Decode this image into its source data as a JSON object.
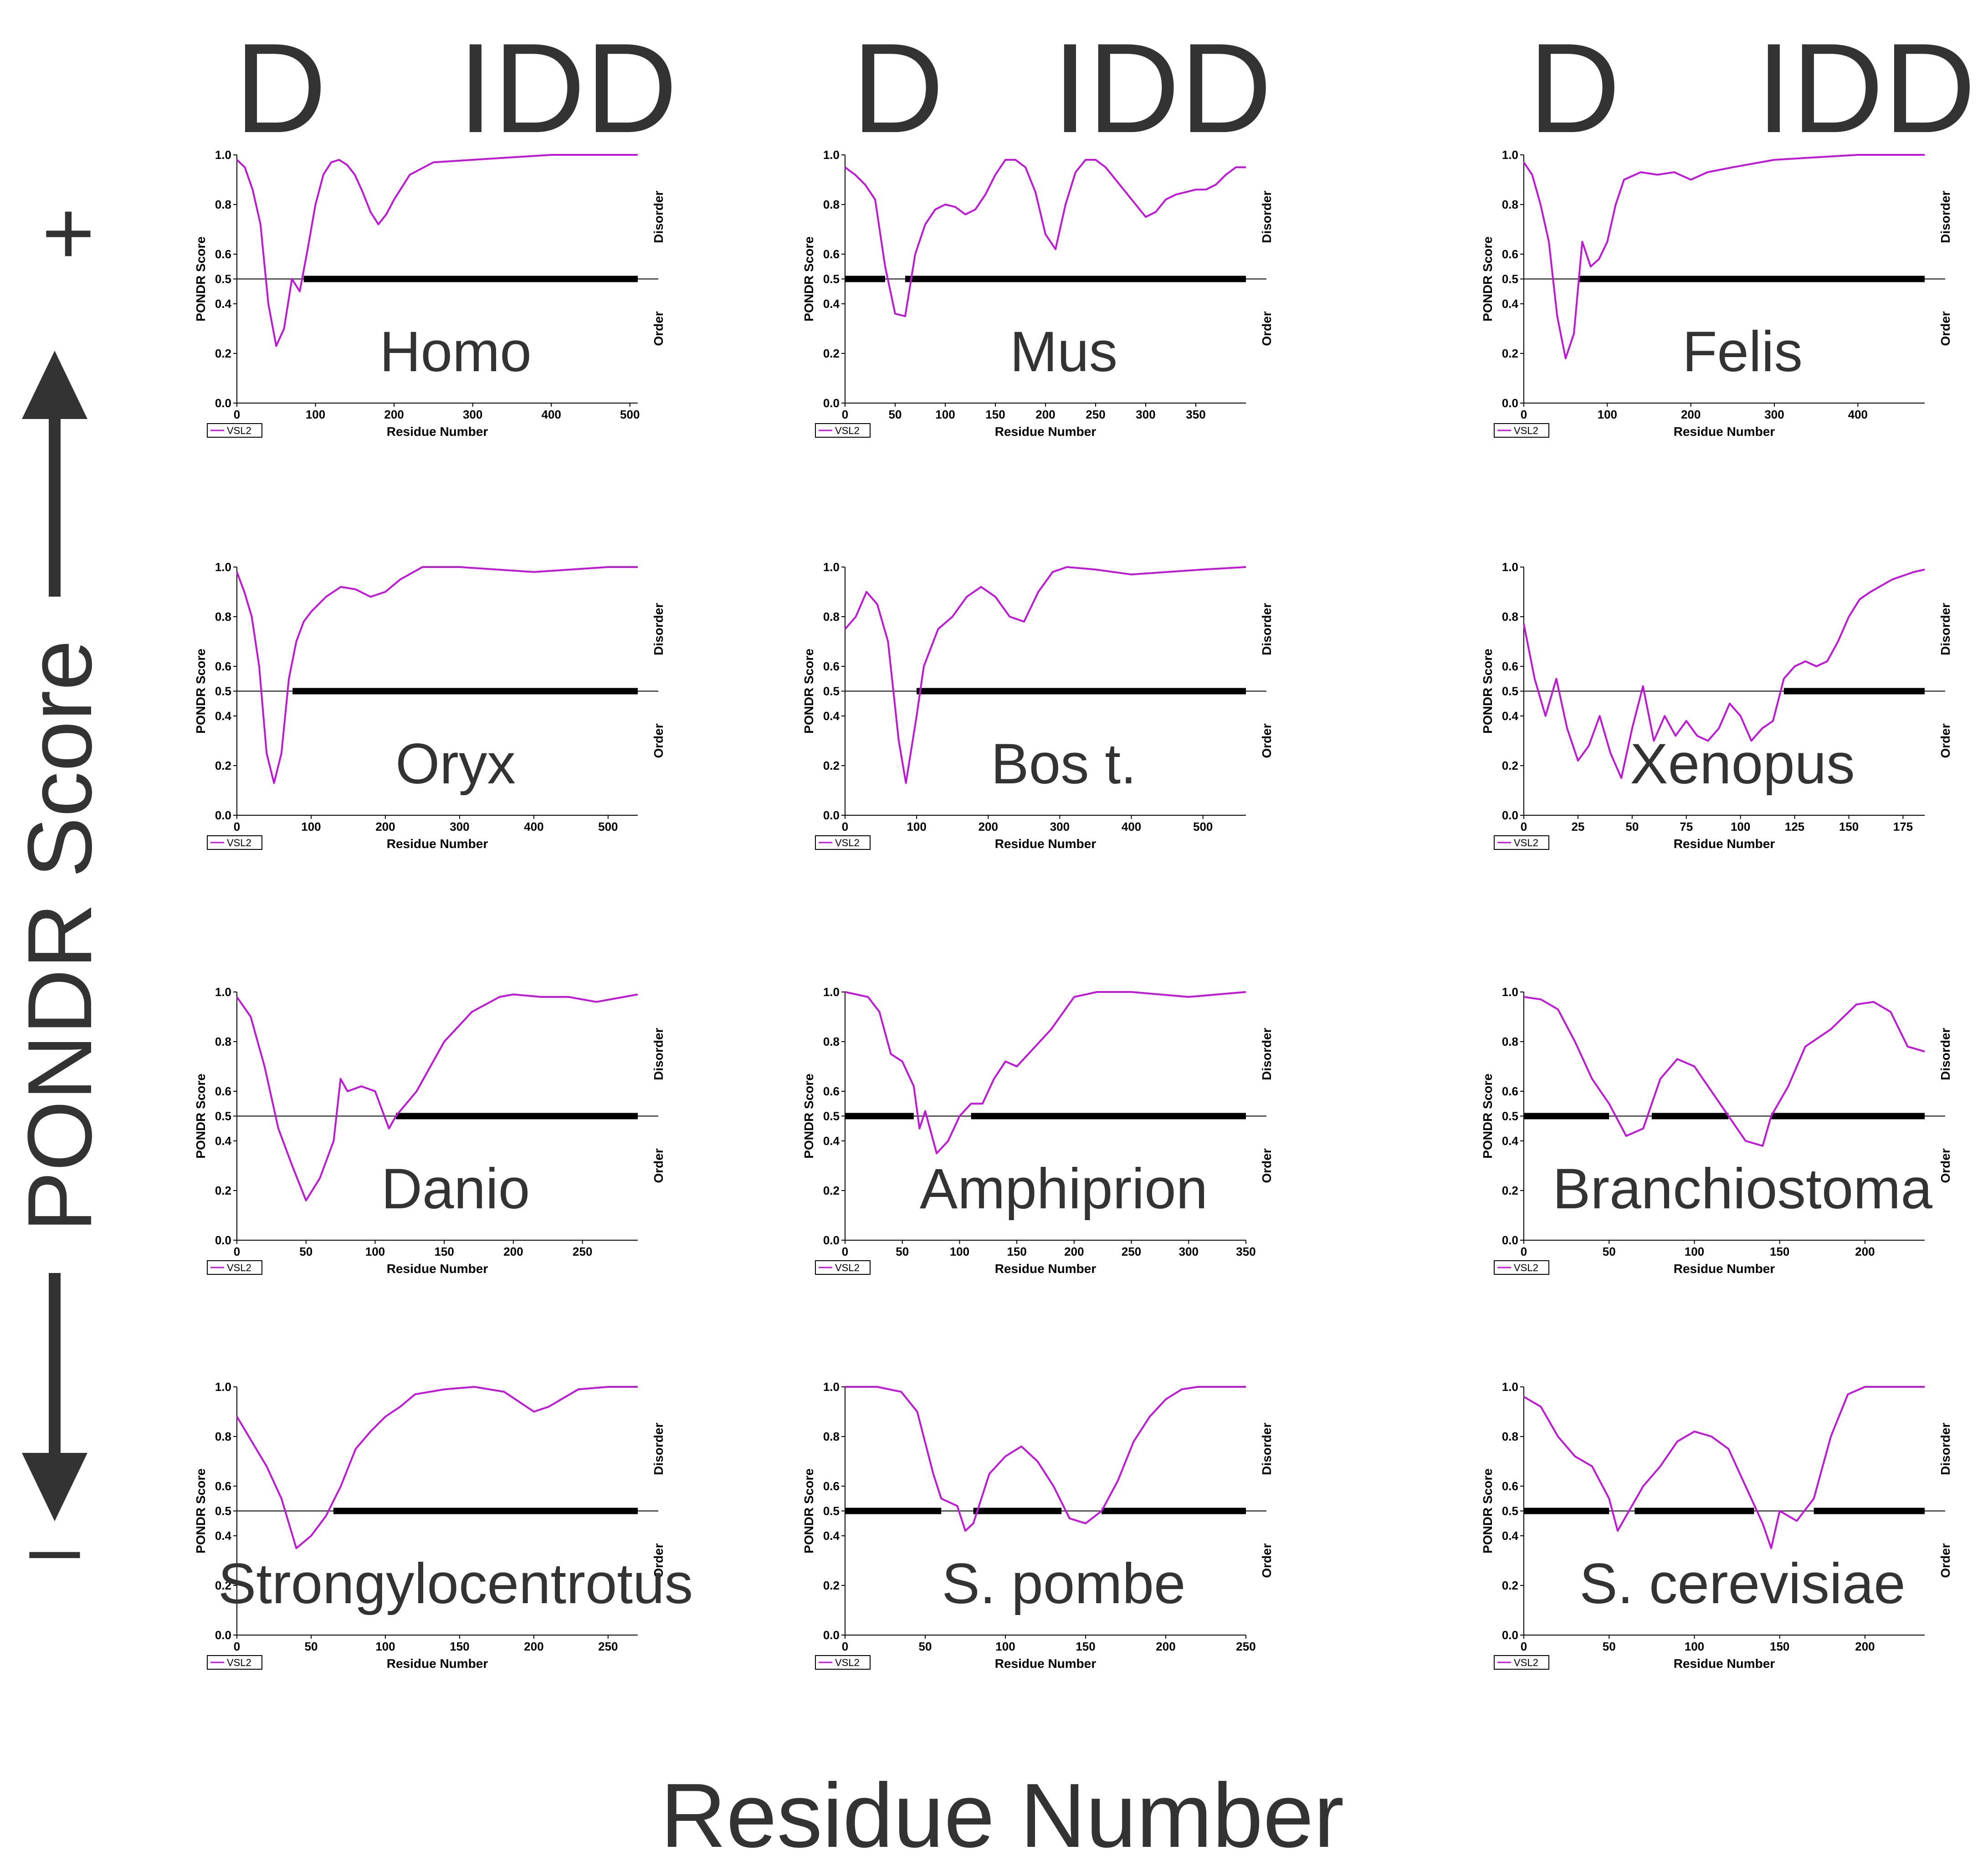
{
  "figure": {
    "column_headers": [
      {
        "d": "D",
        "idd": "IDD"
      },
      {
        "d": "D",
        "idd": "IDD"
      },
      {
        "d": "D",
        "idd": "IDD"
      }
    ],
    "y_axis_title": "PONDR Score",
    "y_axis_plus": "+",
    "y_axis_minus": "–",
    "x_axis_title": "Residue Number"
  },
  "colors": {
    "series": "#c016d8",
    "threshold_bar": "#000000",
    "text": "#333333"
  },
  "chart_data": [
    {
      "type": "line",
      "organism": "Homo",
      "xlabel": "Residue Number",
      "ylabel": "PONDR Score",
      "legend": "VSL2",
      "right_top": "Disorder",
      "right_bottom": "Order",
      "threshold": 0.5,
      "ylim": [
        0,
        1.0
      ],
      "yticks": [
        0.0,
        0.2,
        0.4,
        0.5,
        0.6,
        0.8,
        1.0
      ],
      "xmax": 510,
      "xticks": [
        0,
        100,
        200,
        300,
        400,
        500
      ],
      "disorder_start": 85,
      "disorder_segments": [
        [
          85,
          510
        ]
      ],
      "x": [
        0,
        10,
        20,
        30,
        40,
        50,
        60,
        70,
        80,
        90,
        100,
        110,
        120,
        130,
        140,
        150,
        160,
        170,
        180,
        190,
        200,
        220,
        250,
        300,
        350,
        400,
        450,
        510
      ],
      "y": [
        0.98,
        0.95,
        0.86,
        0.72,
        0.4,
        0.23,
        0.3,
        0.5,
        0.45,
        0.62,
        0.8,
        0.92,
        0.97,
        0.98,
        0.96,
        0.92,
        0.85,
        0.77,
        0.72,
        0.76,
        0.82,
        0.92,
        0.97,
        0.98,
        0.99,
        1.0,
        1.0,
        1.0
      ]
    },
    {
      "type": "line",
      "organism": "Mus",
      "xlabel": "Residue Number",
      "ylabel": "PONDR Score",
      "legend": "VSL2",
      "right_top": "Disorder",
      "right_bottom": "Order",
      "threshold": 0.5,
      "ylim": [
        0,
        1.0
      ],
      "yticks": [
        0.0,
        0.2,
        0.4,
        0.5,
        0.6,
        0.8,
        1.0
      ],
      "xmax": 400,
      "xticks": [
        0,
        50,
        100,
        150,
        200,
        250,
        300,
        350
      ],
      "disorder_start": 40,
      "disorder_segments": [
        [
          0,
          40
        ],
        [
          60,
          400
        ]
      ],
      "x": [
        0,
        10,
        20,
        30,
        40,
        50,
        60,
        70,
        80,
        90,
        100,
        110,
        120,
        130,
        140,
        150,
        160,
        170,
        180,
        190,
        200,
        210,
        220,
        230,
        240,
        250,
        260,
        270,
        280,
        290,
        300,
        310,
        320,
        330,
        340,
        350,
        360,
        370,
        380,
        390,
        400
      ],
      "y": [
        0.95,
        0.92,
        0.88,
        0.82,
        0.55,
        0.36,
        0.35,
        0.6,
        0.72,
        0.78,
        0.8,
        0.79,
        0.76,
        0.78,
        0.84,
        0.92,
        0.98,
        0.98,
        0.95,
        0.85,
        0.68,
        0.62,
        0.8,
        0.93,
        0.98,
        0.98,
        0.95,
        0.9,
        0.85,
        0.8,
        0.75,
        0.77,
        0.82,
        0.84,
        0.85,
        0.86,
        0.86,
        0.88,
        0.92,
        0.95,
        0.95
      ]
    },
    {
      "type": "line",
      "organism": "Felis",
      "xlabel": "Residue Number",
      "ylabel": "PONDR Score",
      "legend": "VSL2",
      "right_top": "Disorder",
      "right_bottom": "Order",
      "threshold": 0.5,
      "ylim": [
        0,
        1.0
      ],
      "yticks": [
        0.0,
        0.2,
        0.4,
        0.5,
        0.6,
        0.8,
        1.0
      ],
      "xmax": 480,
      "xticks": [
        0,
        100,
        200,
        300,
        400
      ],
      "disorder_start": 65,
      "disorder_segments": [
        [
          65,
          480
        ]
      ],
      "x": [
        0,
        10,
        20,
        30,
        40,
        50,
        60,
        70,
        80,
        90,
        100,
        110,
        120,
        140,
        160,
        180,
        200,
        220,
        250,
        300,
        350,
        400,
        450,
        480
      ],
      "y": [
        0.97,
        0.92,
        0.8,
        0.65,
        0.35,
        0.18,
        0.28,
        0.65,
        0.55,
        0.58,
        0.65,
        0.8,
        0.9,
        0.93,
        0.92,
        0.93,
        0.9,
        0.93,
        0.95,
        0.98,
        0.99,
        1.0,
        1.0,
        1.0
      ]
    },
    {
      "type": "line",
      "organism": "Oryx",
      "xlabel": "Residue Number",
      "ylabel": "PONDR Score",
      "legend": "VSL2",
      "right_top": "Disorder",
      "right_bottom": "Order",
      "threshold": 0.5,
      "ylim": [
        0,
        1.0
      ],
      "yticks": [
        0.0,
        0.2,
        0.4,
        0.5,
        0.6,
        0.8,
        1.0
      ],
      "xmax": 540,
      "xticks": [
        0,
        100,
        200,
        300,
        400,
        500
      ],
      "disorder_start": 75,
      "disorder_segments": [
        [
          75,
          540
        ]
      ],
      "x": [
        0,
        10,
        20,
        30,
        40,
        50,
        60,
        70,
        80,
        90,
        100,
        120,
        140,
        160,
        180,
        200,
        220,
        250,
        300,
        350,
        400,
        450,
        500,
        540
      ],
      "y": [
        0.98,
        0.9,
        0.8,
        0.6,
        0.25,
        0.13,
        0.25,
        0.55,
        0.7,
        0.78,
        0.82,
        0.88,
        0.92,
        0.91,
        0.88,
        0.9,
        0.95,
        1.0,
        1.0,
        0.99,
        0.98,
        0.99,
        1.0,
        1.0
      ]
    },
    {
      "type": "line",
      "organism": "Bos t.",
      "xlabel": "Residue Number",
      "ylabel": "PONDR Score",
      "legend": "VSL2",
      "right_top": "Disorder",
      "right_bottom": "Order",
      "threshold": 0.5,
      "ylim": [
        0,
        1.0
      ],
      "yticks": [
        0.0,
        0.2,
        0.4,
        0.5,
        0.6,
        0.8,
        1.0
      ],
      "xmax": 560,
      "xticks": [
        0,
        100,
        200,
        300,
        400,
        500
      ],
      "disorder_start": 100,
      "disorder_segments": [
        [
          100,
          560
        ]
      ],
      "x": [
        0,
        15,
        30,
        45,
        60,
        75,
        85,
        100,
        110,
        130,
        150,
        170,
        190,
        210,
        230,
        250,
        270,
        290,
        310,
        350,
        400,
        450,
        500,
        560
      ],
      "y": [
        0.75,
        0.8,
        0.9,
        0.85,
        0.7,
        0.3,
        0.13,
        0.4,
        0.6,
        0.75,
        0.8,
        0.88,
        0.92,
        0.88,
        0.8,
        0.78,
        0.9,
        0.98,
        1.0,
        0.99,
        0.97,
        0.98,
        0.99,
        1.0
      ]
    },
    {
      "type": "line",
      "organism": "Xenopus",
      "xlabel": "Residue Number",
      "ylabel": "PONDR Score",
      "legend": "VSL2",
      "right_top": "Disorder",
      "right_bottom": "Order",
      "threshold": 0.5,
      "ylim": [
        0,
        1.0
      ],
      "yticks": [
        0.0,
        0.2,
        0.4,
        0.5,
        0.6,
        0.8,
        1.0
      ],
      "xmax": 185,
      "xticks": [
        0,
        25,
        50,
        75,
        100,
        125,
        150,
        175
      ],
      "disorder_start": 120,
      "disorder_segments": [
        [
          120,
          185
        ]
      ],
      "x": [
        0,
        5,
        10,
        15,
        20,
        25,
        30,
        35,
        40,
        45,
        50,
        55,
        60,
        65,
        70,
        75,
        80,
        85,
        90,
        95,
        100,
        105,
        110,
        115,
        120,
        125,
        130,
        135,
        140,
        145,
        150,
        155,
        160,
        170,
        180,
        185
      ],
      "y": [
        0.77,
        0.55,
        0.4,
        0.55,
        0.35,
        0.22,
        0.28,
        0.4,
        0.25,
        0.15,
        0.35,
        0.52,
        0.3,
        0.4,
        0.32,
        0.38,
        0.32,
        0.3,
        0.35,
        0.45,
        0.4,
        0.3,
        0.35,
        0.38,
        0.55,
        0.6,
        0.62,
        0.6,
        0.62,
        0.7,
        0.8,
        0.87,
        0.9,
        0.95,
        0.98,
        0.99
      ]
    },
    {
      "type": "line",
      "organism": "Danio",
      "xlabel": "Residue Number",
      "ylabel": "PONDR Score",
      "legend": "VSL2",
      "right_top": "Disorder",
      "right_bottom": "Order",
      "threshold": 0.5,
      "ylim": [
        0,
        1.0
      ],
      "yticks": [
        0.0,
        0.2,
        0.4,
        0.5,
        0.6,
        0.8,
        1.0
      ],
      "xmax": 290,
      "xticks": [
        0,
        50,
        100,
        150,
        200,
        250
      ],
      "disorder_start": 115,
      "disorder_segments": [
        [
          115,
          290
        ]
      ],
      "x": [
        0,
        10,
        20,
        30,
        40,
        50,
        60,
        70,
        75,
        80,
        90,
        100,
        110,
        115,
        130,
        150,
        170,
        190,
        200,
        220,
        240,
        260,
        280,
        290
      ],
      "y": [
        0.98,
        0.9,
        0.7,
        0.45,
        0.3,
        0.16,
        0.25,
        0.4,
        0.65,
        0.6,
        0.62,
        0.6,
        0.45,
        0.5,
        0.6,
        0.8,
        0.92,
        0.98,
        0.99,
        0.98,
        0.98,
        0.96,
        0.98,
        0.99
      ]
    },
    {
      "type": "line",
      "organism": "Amphiprion",
      "xlabel": "Residue Number",
      "ylabel": "PONDR Score",
      "legend": "VSL2",
      "right_top": "Disorder",
      "right_bottom": "Order",
      "threshold": 0.5,
      "ylim": [
        0,
        1.0
      ],
      "yticks": [
        0.0,
        0.2,
        0.4,
        0.5,
        0.6,
        0.8,
        1.0
      ],
      "xmax": 350,
      "xticks": [
        0,
        50,
        100,
        150,
        200,
        250,
        300,
        350
      ],
      "disorder_start": 60,
      "disorder_segments": [
        [
          0,
          60
        ],
        [
          110,
          350
        ]
      ],
      "x": [
        0,
        20,
        30,
        40,
        50,
        60,
        65,
        70,
        80,
        90,
        100,
        110,
        120,
        130,
        140,
        150,
        160,
        180,
        200,
        220,
        250,
        300,
        350
      ],
      "y": [
        1.0,
        0.98,
        0.92,
        0.75,
        0.72,
        0.62,
        0.45,
        0.52,
        0.35,
        0.4,
        0.5,
        0.55,
        0.55,
        0.65,
        0.72,
        0.7,
        0.75,
        0.85,
        0.98,
        1.0,
        1.0,
        0.98,
        1.0
      ]
    },
    {
      "type": "line",
      "organism": "Branchiostoma",
      "xlabel": "Residue Number",
      "ylabel": "PONDR Score",
      "legend": "VSL2",
      "right_top": "Disorder",
      "right_bottom": "Order",
      "threshold": 0.5,
      "ylim": [
        0,
        1.0
      ],
      "yticks": [
        0.0,
        0.2,
        0.4,
        0.5,
        0.6,
        0.8,
        1.0
      ],
      "xmax": 235,
      "xticks": [
        0,
        50,
        100,
        150,
        200
      ],
      "disorder_start": 50,
      "disorder_segments": [
        [
          0,
          50
        ],
        [
          75,
          120
        ],
        [
          145,
          235
        ]
      ],
      "x": [
        0,
        10,
        20,
        30,
        40,
        50,
        60,
        70,
        80,
        90,
        100,
        110,
        120,
        130,
        140,
        145,
        155,
        165,
        180,
        195,
        205,
        215,
        225,
        235
      ],
      "y": [
        0.98,
        0.97,
        0.93,
        0.8,
        0.65,
        0.55,
        0.42,
        0.45,
        0.65,
        0.73,
        0.7,
        0.6,
        0.5,
        0.4,
        0.38,
        0.5,
        0.62,
        0.78,
        0.85,
        0.95,
        0.96,
        0.92,
        0.78,
        0.76
      ]
    },
    {
      "type": "line",
      "organism": "Strongylocentrotus",
      "xlabel": "Residue Number",
      "ylabel": "PONDR Score",
      "legend": "VSL2",
      "right_top": "Disorder",
      "right_bottom": "Order",
      "threshold": 0.5,
      "ylim": [
        0,
        1.0
      ],
      "yticks": [
        0.0,
        0.2,
        0.4,
        0.5,
        0.6,
        0.8,
        1.0
      ],
      "xmax": 270,
      "xticks": [
        0,
        50,
        100,
        150,
        200,
        250
      ],
      "disorder_start": 65,
      "disorder_segments": [
        [
          65,
          270
        ]
      ],
      "x": [
        0,
        10,
        20,
        30,
        40,
        50,
        60,
        70,
        80,
        90,
        100,
        110,
        120,
        140,
        160,
        180,
        200,
        210,
        230,
        250,
        270
      ],
      "y": [
        0.88,
        0.78,
        0.68,
        0.55,
        0.35,
        0.4,
        0.48,
        0.6,
        0.75,
        0.82,
        0.88,
        0.92,
        0.97,
        0.99,
        1.0,
        0.98,
        0.9,
        0.92,
        0.99,
        1.0,
        1.0
      ]
    },
    {
      "type": "line",
      "organism": "S. pombe",
      "xlabel": "Residue Number",
      "ylabel": "PONDR Score",
      "legend": "VSL2",
      "right_top": "Disorder",
      "right_bottom": "Order",
      "threshold": 0.5,
      "ylim": [
        0,
        1.0
      ],
      "yticks": [
        0.0,
        0.2,
        0.4,
        0.5,
        0.6,
        0.8,
        1.0
      ],
      "xmax": 250,
      "xticks": [
        0,
        50,
        100,
        150,
        200,
        250
      ],
      "disorder_start": 60,
      "disorder_segments": [
        [
          0,
          60
        ],
        [
          80,
          135
        ],
        [
          160,
          250
        ]
      ],
      "x": [
        0,
        20,
        35,
        45,
        55,
        60,
        70,
        75,
        80,
        90,
        100,
        110,
        120,
        130,
        140,
        150,
        160,
        170,
        180,
        190,
        200,
        210,
        220,
        250
      ],
      "y": [
        1.0,
        1.0,
        0.98,
        0.9,
        0.65,
        0.55,
        0.52,
        0.42,
        0.45,
        0.65,
        0.72,
        0.76,
        0.7,
        0.6,
        0.47,
        0.45,
        0.5,
        0.62,
        0.78,
        0.88,
        0.95,
        0.99,
        1.0,
        1.0
      ]
    },
    {
      "type": "line",
      "organism": "S. cerevisiae",
      "xlabel": "Residue Number",
      "ylabel": "PONDR Score",
      "legend": "VSL2",
      "right_top": "Disorder",
      "right_bottom": "Order",
      "threshold": 0.5,
      "ylim": [
        0,
        1.0
      ],
      "yticks": [
        0.0,
        0.2,
        0.4,
        0.5,
        0.6,
        0.8,
        1.0
      ],
      "xmax": 235,
      "xticks": [
        0,
        50,
        100,
        150,
        200
      ],
      "disorder_start": 50,
      "disorder_segments": [
        [
          0,
          50
        ],
        [
          65,
          135
        ],
        [
          170,
          235
        ]
      ],
      "x": [
        0,
        10,
        20,
        30,
        40,
        50,
        55,
        60,
        70,
        80,
        90,
        100,
        110,
        120,
        130,
        140,
        145,
        150,
        160,
        170,
        180,
        190,
        200,
        235
      ],
      "y": [
        0.96,
        0.92,
        0.8,
        0.72,
        0.68,
        0.55,
        0.42,
        0.48,
        0.6,
        0.68,
        0.78,
        0.82,
        0.8,
        0.75,
        0.6,
        0.45,
        0.35,
        0.5,
        0.46,
        0.55,
        0.8,
        0.97,
        1.0,
        1.0
      ]
    }
  ]
}
